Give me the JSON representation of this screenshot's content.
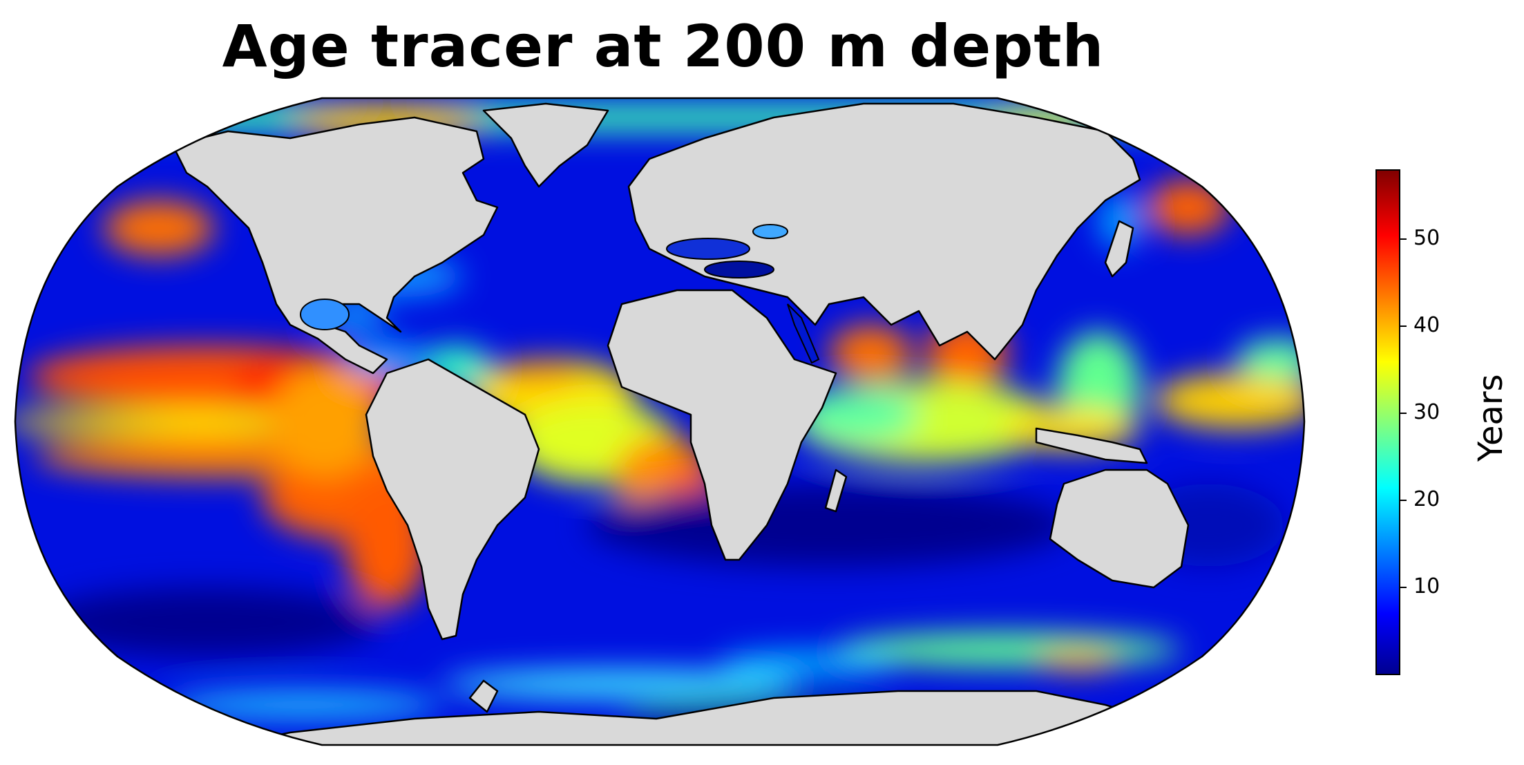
{
  "title": "Age tracer at 200 m depth",
  "projection": "Robinson",
  "colormap": {
    "name": "jet",
    "label": "Years",
    "range": [
      0,
      58
    ],
    "ticks": [
      10,
      20,
      30,
      40,
      50
    ],
    "tick_labels": [
      "10",
      "20",
      "30",
      "40",
      "50"
    ]
  },
  "colors": {
    "land": "#d9d9d9",
    "coastline": "#000000",
    "missing_ocean": "#ffffff"
  }
}
